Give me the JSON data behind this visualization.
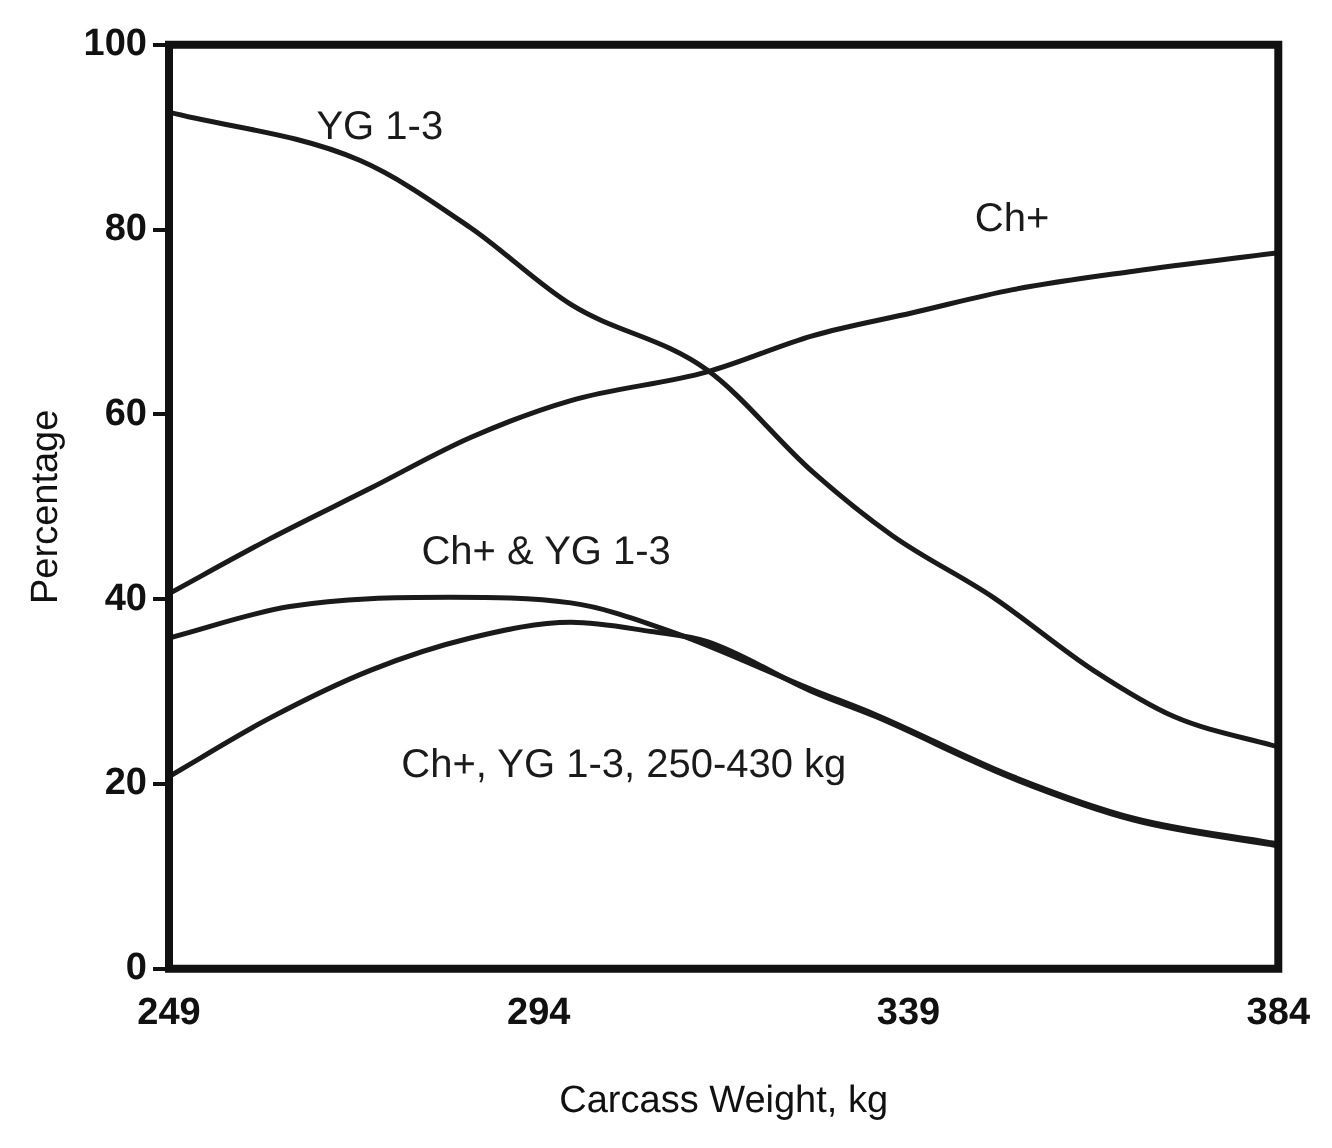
{
  "chart_data": {
    "type": "line",
    "xlabel": "Carcass Weight, kg",
    "ylabel": "Percentage",
    "xlim": [
      249,
      384
    ],
    "xticks": [
      249,
      294,
      339,
      384
    ],
    "ylim": [
      0,
      100
    ],
    "yticks": [
      0,
      20,
      40,
      60,
      80,
      100
    ],
    "grid": false,
    "legend": false,
    "marker": "none",
    "line_style": "solid",
    "series": [
      {
        "name": "YG 1-3",
        "color": "#1a1a1a",
        "x": [
          249,
          272.2,
          285.7,
          297.9,
          314.5,
          327.3,
          337,
          349.3,
          361.5,
          371.3,
          384
        ],
        "values": [
          92.7,
          87.5,
          80.2,
          71.9,
          64.8,
          53.8,
          46.9,
          40.2,
          32.3,
          27.3,
          24
        ]
      },
      {
        "name": "Ch+",
        "color": "#1a1a1a",
        "x": [
          249,
          261.2,
          273.5,
          285.7,
          297.9,
          314.5,
          327.3,
          339.5,
          351.7,
          366.4,
          384
        ],
        "values": [
          40.6,
          46.5,
          52,
          57.5,
          61.5,
          64.6,
          68.5,
          71,
          73.5,
          75.5,
          77.5
        ]
      },
      {
        "name": "Ch+ & YG 1-3",
        "color": "#1a1a1a",
        "x": [
          249,
          263.7,
          283.2,
          297.9,
          310.1,
          327.3,
          335,
          351.7,
          366.4,
          384
        ],
        "values": [
          35.8,
          39.2,
          40.2,
          39.6,
          36.5,
          30.2,
          27.5,
          20.8,
          16.3,
          13.5
        ]
      },
      {
        "name": "Ch+, YG 1-3, 250-430 kg",
        "color": "#1a1a1a",
        "x": [
          249,
          261.2,
          273.5,
          285.7,
          297.9,
          307.7,
          314.5,
          327.3,
          335,
          351.7,
          366.4,
          384
        ],
        "values": [
          20.8,
          27.1,
          32.3,
          35.8,
          37.5,
          36.5,
          35.4,
          30,
          27.3,
          20.6,
          16.1,
          13.3
        ]
      }
    ]
  }
}
